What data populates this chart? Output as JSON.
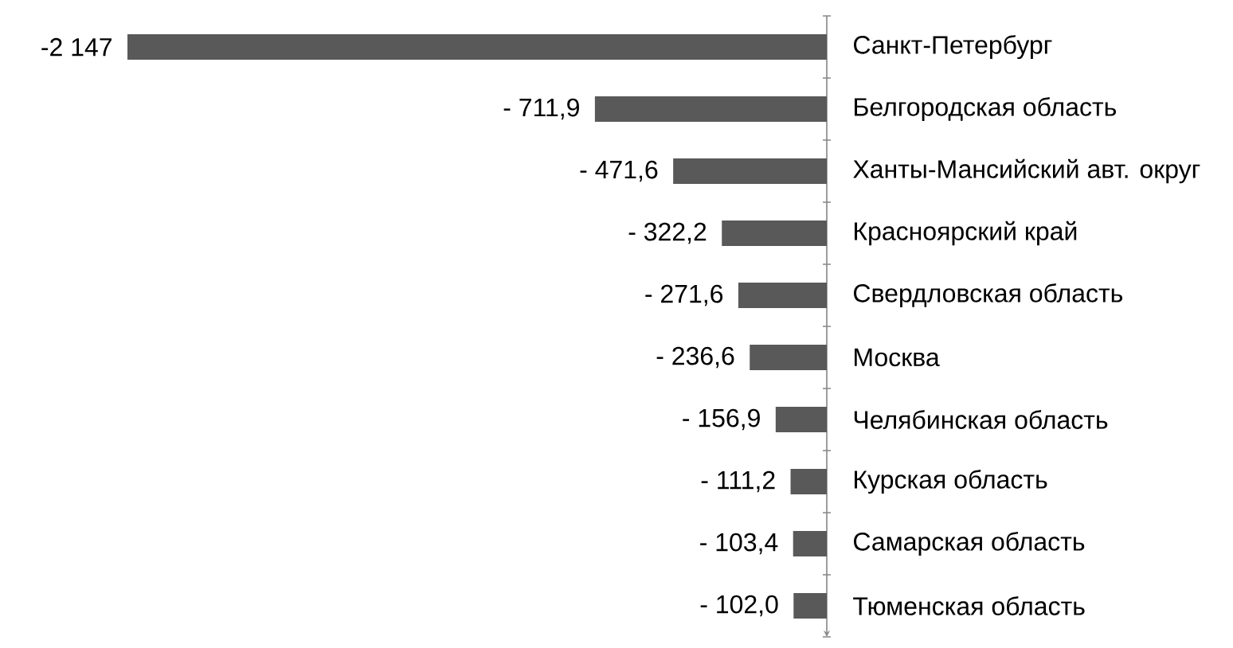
{
  "chart_data": {
    "type": "bar",
    "orientation": "horizontal",
    "categories": [
      "Санкт-Петербург",
      "Белгородская область",
      "Ханты-Мансийский авт. округ",
      "Красноярский край",
      "Свердловская область",
      "Москва",
      "Челябинская область",
      "Курская область",
      "Самарская область",
      "Тюменская область"
    ],
    "values": [
      -2147,
      -711.9,
      -471.6,
      -322.2,
      -271.6,
      -236.6,
      -156.9,
      -111.2,
      -103.4,
      -102.0
    ],
    "value_labels": [
      "-2 147",
      "- 711,9",
      "- 471,6",
      "- 322,2",
      "- 271,6",
      "- 236,6",
      "- 156,9",
      "- 111,2",
      "- 103,4",
      "- 102,0"
    ],
    "color": "#595959",
    "tick_labels": "y"
  }
}
